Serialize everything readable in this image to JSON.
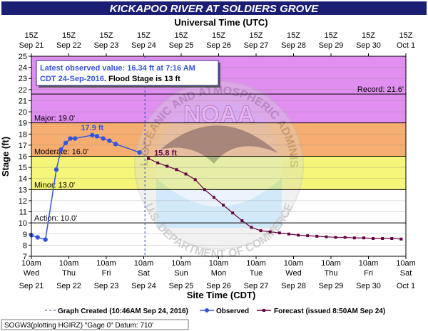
{
  "page": {
    "title": "KICKAPOO RIVER AT SOLDIERS GROVE",
    "top_axis_title": "Universal Time (UTC)",
    "bottom_axis_title": "Site Time (CDT)",
    "y_axis_title": "Stage (ft)",
    "info_box": {
      "line1": "Latest observed value: 16.34 ft at 7:16 AM",
      "line2a": "CDT 24-Sep-2016",
      "line2b": ". Flood Stage is 13 ft"
    },
    "legend": {
      "graph_created": "Graph Created (10:46AM Sep 24, 2016)",
      "observed": "Observed",
      "forecast": "Forecast (issued 8:50AM Sep 24)"
    },
    "footer_id": "SOGW3(plotting HGIRZ) \"Gage 0\" Datum: 710'",
    "watermark": {
      "center_text": "NOAA",
      "ring_text": "NATIONAL OCEANIC AND ATMOSPHERIC ADMINISTRATION",
      "bottom_text": "U.S. DEPARTMENT OF COMMERCE"
    },
    "colors": {
      "title_bar": "#1a1f73",
      "record_band": "#e08ef0",
      "major_band": "#f06a6a",
      "moderate_band": "#f7ad6f",
      "minor_band": "#f5f57a",
      "action_band": "#ffffff",
      "observed": "#3355dd",
      "forecast": "#660044"
    }
  },
  "chart_data": {
    "type": "line",
    "title": "KICKAPOO RIVER AT SOLDIERS GROVE",
    "ylabel": "Stage (ft)",
    "xlabel": "Site Time (CDT)",
    "x2label": "Universal Time (UTC)",
    "ylim": [
      7,
      25
    ],
    "yticks": [
      7,
      8,
      9,
      10,
      11,
      12,
      13,
      14,
      15,
      16,
      17,
      18,
      19,
      20,
      21,
      22,
      23,
      24,
      25
    ],
    "xlim": [
      "2016-09-21 10:00",
      "2016-10-01 10:00"
    ],
    "bottom_ticks": [
      {
        "time": "10am",
        "day": "Wed",
        "date": "Sep 21"
      },
      {
        "time": "10am",
        "day": "Thu",
        "date": "Sep 22"
      },
      {
        "time": "10am",
        "day": "Fri",
        "date": "Sep 23"
      },
      {
        "time": "10am",
        "day": "Sat",
        "date": "Sep 24"
      },
      {
        "time": "10am",
        "day": "Sun",
        "date": "Sep 25"
      },
      {
        "time": "10am",
        "day": "Mon",
        "date": "Sep 26"
      },
      {
        "time": "10am",
        "day": "Tue",
        "date": "Sep 27"
      },
      {
        "time": "10am",
        "day": "Wed",
        "date": "Sep 28"
      },
      {
        "time": "10am",
        "day": "Thu",
        "date": "Sep 29"
      },
      {
        "time": "10am",
        "day": "Fri",
        "date": "Sep 30"
      },
      {
        "time": "10am",
        "day": "Sat",
        "date": "Oct 1"
      }
    ],
    "top_ticks": [
      {
        "time": "15Z",
        "date": "Sep 21"
      },
      {
        "time": "15Z",
        "date": "Sep 22"
      },
      {
        "time": "15Z",
        "date": "Sep 23"
      },
      {
        "time": "15Z",
        "date": "Sep 24"
      },
      {
        "time": "15Z",
        "date": "Sep 25"
      },
      {
        "time": "15Z",
        "date": "Sep 26"
      },
      {
        "time": "15Z",
        "date": "Sep 27"
      },
      {
        "time": "15Z",
        "date": "Sep 28"
      },
      {
        "time": "15Z",
        "date": "Sep 29"
      },
      {
        "time": "15Z",
        "date": "Sep 30"
      },
      {
        "time": "15Z",
        "date": "Oct 1"
      }
    ],
    "flood_categories": [
      {
        "name": "Action",
        "label": "Action: 10.0'",
        "from": 10,
        "to": 13,
        "color": "#ffffff"
      },
      {
        "name": "Minor",
        "label": "Minor: 13.0'",
        "from": 13,
        "to": 16,
        "color": "#f5f57a"
      },
      {
        "name": "Moderate",
        "label": "Moderate: 16.0'",
        "from": 16,
        "to": 19,
        "color": "#f7ad6f"
      },
      {
        "name": "Major",
        "label": "Major: 19.0'",
        "from": 19,
        "to": 25,
        "color": "#f06a6a"
      }
    ],
    "record": {
      "label": "Record: 21.6'",
      "value": 21.6
    },
    "flood_stage": 13,
    "graph_created": "2016-09-24 10:46",
    "series": [
      {
        "name": "Observed",
        "color": "#3355dd",
        "points": [
          [
            "2016-09-21 10:00",
            8.9
          ],
          [
            "2016-09-21 14:00",
            8.7
          ],
          [
            "2016-09-21 19:00",
            8.5
          ],
          [
            "2016-09-22 02:00",
            14.8
          ],
          [
            "2016-09-22 05:00",
            16.6
          ],
          [
            "2016-09-22 08:00",
            17.2
          ],
          [
            "2016-09-22 11:00",
            17.6
          ],
          [
            "2016-09-22 14:00",
            17.6
          ],
          [
            "2016-09-23 01:00",
            17.9
          ],
          [
            "2016-09-23 04:00",
            17.8
          ],
          [
            "2016-09-23 08:00",
            17.6
          ],
          [
            "2016-09-23 12:00",
            17.4
          ],
          [
            "2016-09-23 16:00",
            17.1
          ],
          [
            "2016-09-24 07:16",
            16.34
          ]
        ]
      },
      {
        "name": "Forecast",
        "color": "#660044",
        "points": [
          [
            "2016-09-24 13:00",
            15.8
          ],
          [
            "2016-09-24 19:00",
            15.4
          ],
          [
            "2016-09-25 01:00",
            15.1
          ],
          [
            "2016-09-25 07:00",
            14.8
          ],
          [
            "2016-09-25 13:00",
            14.4
          ],
          [
            "2016-09-25 19:00",
            13.9
          ],
          [
            "2016-09-26 01:00",
            13.0
          ],
          [
            "2016-09-26 07:00",
            12.3
          ],
          [
            "2016-09-26 13:00",
            11.6
          ],
          [
            "2016-09-26 19:00",
            10.9
          ],
          [
            "2016-09-27 01:00",
            10.2
          ],
          [
            "2016-09-27 07:00",
            9.6
          ],
          [
            "2016-09-27 13:00",
            9.3
          ],
          [
            "2016-09-27 19:00",
            9.2
          ],
          [
            "2016-09-28 01:00",
            9.1
          ],
          [
            "2016-09-28 07:00",
            9.0
          ],
          [
            "2016-09-28 13:00",
            8.9
          ],
          [
            "2016-09-28 19:00",
            8.85
          ],
          [
            "2016-09-29 01:00",
            8.8
          ],
          [
            "2016-09-29 07:00",
            8.75
          ],
          [
            "2016-09-29 13:00",
            8.7
          ],
          [
            "2016-09-29 19:00",
            8.7
          ],
          [
            "2016-09-30 01:00",
            8.65
          ],
          [
            "2016-09-30 07:00",
            8.65
          ],
          [
            "2016-09-30 13:00",
            8.6
          ],
          [
            "2016-09-30 19:00",
            8.6
          ],
          [
            "2016-10-01 01:00",
            8.6
          ],
          [
            "2016-10-01 07:00",
            8.55
          ]
        ]
      }
    ],
    "annotations": [
      {
        "text": "17.9 ft",
        "series": "Observed",
        "at": "2016-09-23 01:00",
        "value": 17.9
      },
      {
        "text": "15.8 ft",
        "series": "Forecast",
        "at": "2016-09-24 13:00",
        "value": 15.8
      }
    ]
  }
}
